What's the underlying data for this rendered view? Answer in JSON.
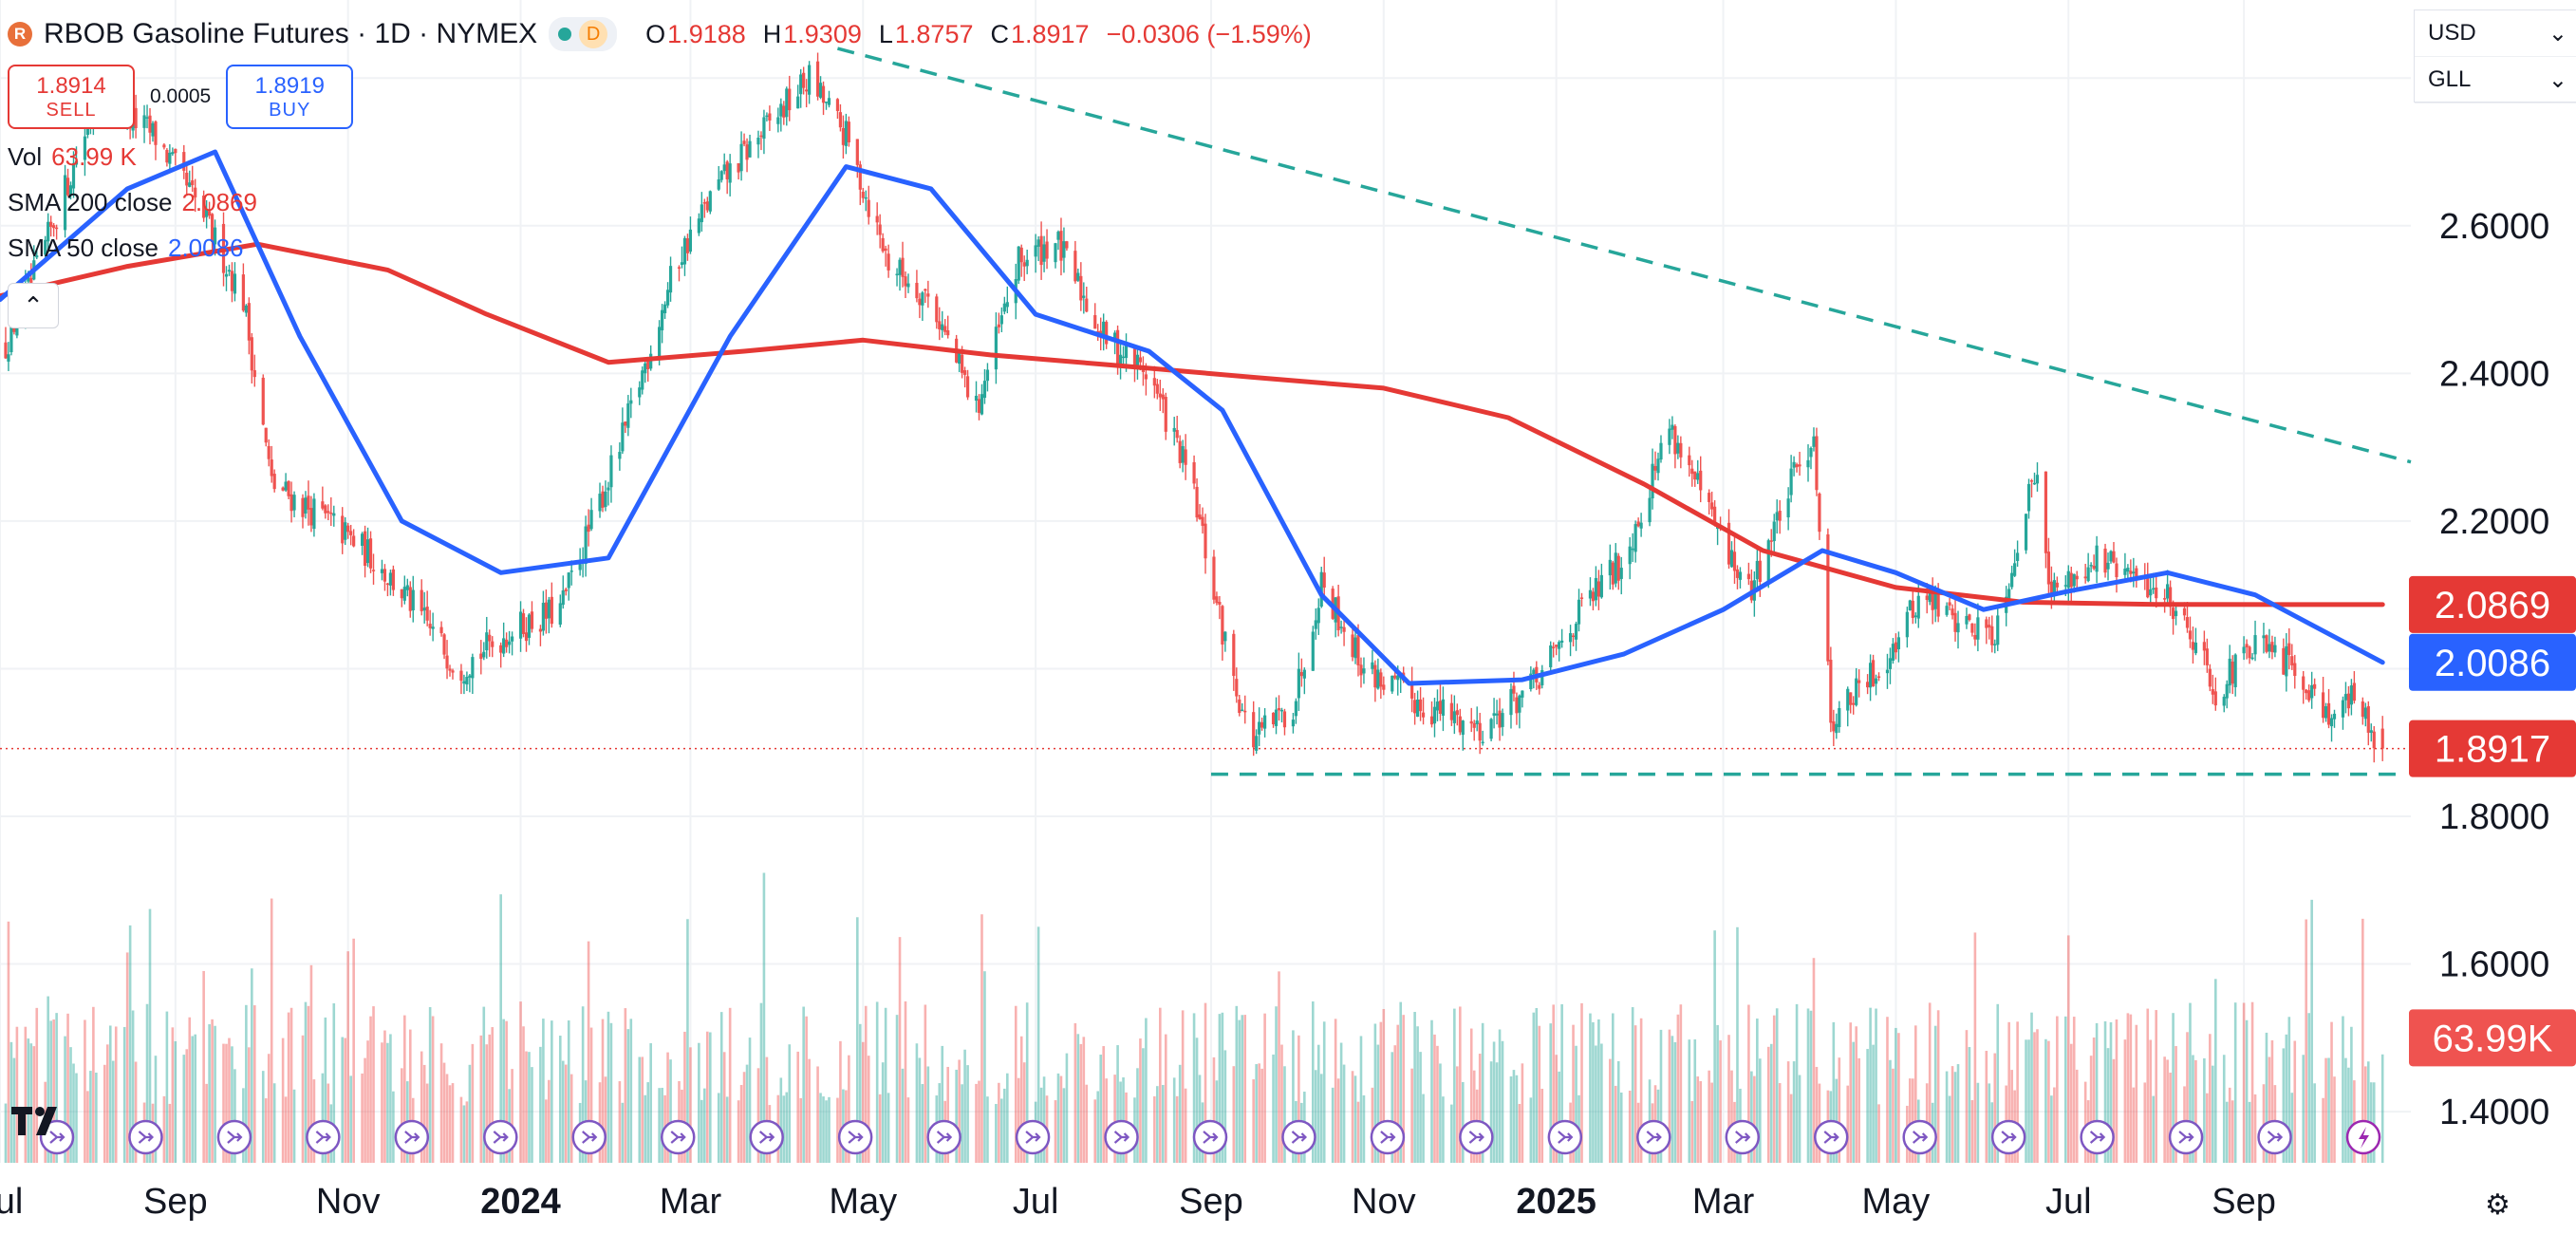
{
  "header": {
    "logo_letter": "R",
    "title": "RBOB Gasoline Futures · 1D · NYMEX",
    "mode_badge": "D",
    "ohlc": [
      {
        "k": "O",
        "v": "1.9188"
      },
      {
        "k": "H",
        "v": "1.9309"
      },
      {
        "k": "L",
        "v": "1.8757"
      },
      {
        "k": "C",
        "v": "1.8917"
      }
    ],
    "change": "−0.0306 (−1.59%)"
  },
  "trade": {
    "sell_price": "1.8914",
    "sell_label": "SELL",
    "spread": "0.0005",
    "buy_price": "1.8919",
    "buy_label": "BUY"
  },
  "indicators": [
    {
      "name": "Vol",
      "value": "63.99 K",
      "color": "#e53935"
    },
    {
      "name": "SMA 200 close",
      "value": "2.0869",
      "color": "#e53935"
    },
    {
      "name": "SMA 50 close",
      "value": "2.0086",
      "color": "#2962ff"
    }
  ],
  "collapse_glyph": "⌃",
  "units": {
    "currency": "USD",
    "unit": "GLL",
    "chevron": "⌄"
  },
  "settings_glyph": "⚙",
  "chart_data": {
    "type": "candlestick",
    "symbol": "RBOB Gasoline Futures",
    "interval": "1D",
    "exchange": "NYMEX",
    "ylim": [
      1.35,
      2.88
    ],
    "y_ticks": [
      1.4,
      1.6,
      1.8,
      2.0,
      2.2,
      2.4,
      2.6,
      2.8
    ],
    "y_tick_labels": [
      "1.4000",
      "1.6000",
      "1.8000",
      "",
      "2.2000",
      "2.4000",
      "2.6000",
      "2.8000"
    ],
    "x_tick_labels": [
      "Jul",
      "Sep",
      "Nov",
      "2024",
      "Mar",
      "May",
      "Jul",
      "Sep",
      "Nov",
      "2025",
      "Mar",
      "May",
      "Jul",
      "Sep"
    ],
    "x_tick_dates": [
      "2023-07-01",
      "2023-09-01",
      "2023-11-01",
      "2024-01-01",
      "2024-03-01",
      "2024-05-01",
      "2024-07-01",
      "2024-09-01",
      "2024-11-01",
      "2025-01-01",
      "2025-03-01",
      "2025-05-01",
      "2025-07-01",
      "2025-09-01"
    ],
    "x_range": [
      "2023-07-01",
      "2025-10-30"
    ],
    "price_path": [
      [
        "2023-07-01",
        2.42
      ],
      [
        "2023-07-15",
        2.55
      ],
      [
        "2023-08-05",
        2.78
      ],
      [
        "2023-08-25",
        2.72
      ],
      [
        "2023-09-10",
        2.62
      ],
      [
        "2023-09-25",
        2.5
      ],
      [
        "2023-10-05",
        2.25
      ],
      [
        "2023-10-25",
        2.2
      ],
      [
        "2023-11-10",
        2.15
      ],
      [
        "2023-11-25",
        2.08
      ],
      [
        "2023-12-10",
        2.0
      ],
      [
        "2023-12-28",
        2.05
      ],
      [
        "2024-01-15",
        2.08
      ],
      [
        "2024-02-05",
        2.3
      ],
      [
        "2024-02-25",
        2.55
      ],
      [
        "2024-03-10",
        2.65
      ],
      [
        "2024-03-25",
        2.72
      ],
      [
        "2024-04-12",
        2.8
      ],
      [
        "2024-04-25",
        2.72
      ],
      [
        "2024-05-10",
        2.55
      ],
      [
        "2024-05-25",
        2.5
      ],
      [
        "2024-06-10",
        2.35
      ],
      [
        "2024-06-25",
        2.55
      ],
      [
        "2024-07-08",
        2.58
      ],
      [
        "2024-07-25",
        2.45
      ],
      [
        "2024-08-10",
        2.4
      ],
      [
        "2024-08-25",
        2.25
      ],
      [
        "2024-09-05",
        2.05
      ],
      [
        "2024-09-15",
        1.9
      ],
      [
        "2024-09-30",
        1.95
      ],
      [
        "2024-10-10",
        2.12
      ],
      [
        "2024-10-25",
        2.0
      ],
      [
        "2024-11-15",
        1.95
      ],
      [
        "2024-12-05",
        1.92
      ],
      [
        "2024-12-25",
        1.98
      ],
      [
        "2025-01-10",
        2.08
      ],
      [
        "2025-01-25",
        2.15
      ],
      [
        "2025-02-10",
        2.33
      ],
      [
        "2025-02-25",
        2.2
      ],
      [
        "2025-03-10",
        2.1
      ],
      [
        "2025-03-25",
        2.25
      ],
      [
        "2025-04-02",
        2.32
      ],
      [
        "2025-04-08",
        1.93
      ],
      [
        "2025-04-25",
        2.0
      ],
      [
        "2025-05-10",
        2.1
      ],
      [
        "2025-05-25",
        2.06
      ],
      [
        "2025-06-05",
        2.05
      ],
      [
        "2025-06-20",
        2.28
      ],
      [
        "2025-06-25",
        2.1
      ],
      [
        "2025-07-10",
        2.15
      ],
      [
        "2025-07-25",
        2.12
      ],
      [
        "2025-08-05",
        2.1
      ],
      [
        "2025-08-15",
        2.04
      ],
      [
        "2025-08-22",
        1.97
      ],
      [
        "2025-09-05",
        2.03
      ],
      [
        "2025-09-20",
        2.0
      ],
      [
        "2025-10-01",
        1.94
      ],
      [
        "2025-10-10",
        1.96
      ],
      [
        "2025-10-20",
        1.89
      ]
    ],
    "last_candle": {
      "open": 1.9188,
      "high": 1.9309,
      "low": 1.8757,
      "close": 1.8917
    },
    "series": [
      {
        "name": "SMA 200 close",
        "color": "#e53935",
        "points": [
          [
            "2023-07-01",
            2.505
          ],
          [
            "2023-08-15",
            2.545
          ],
          [
            "2023-09-30",
            2.575
          ],
          [
            "2023-11-15",
            2.54
          ],
          [
            "2023-12-20",
            2.48
          ],
          [
            "2024-02-01",
            2.415
          ],
          [
            "2024-03-20",
            2.43
          ],
          [
            "2024-05-01",
            2.445
          ],
          [
            "2024-06-15",
            2.425
          ],
          [
            "2024-08-01",
            2.41
          ],
          [
            "2024-09-15",
            2.395
          ],
          [
            "2024-11-01",
            2.38
          ],
          [
            "2024-12-15",
            2.34
          ],
          [
            "2025-02-01",
            2.25
          ],
          [
            "2025-03-15",
            2.16
          ],
          [
            "2025-05-01",
            2.11
          ],
          [
            "2025-06-15",
            2.09
          ],
          [
            "2025-08-01",
            2.087
          ],
          [
            "2025-10-20",
            2.0869
          ]
        ]
      },
      {
        "name": "SMA 50 close",
        "color": "#2962ff",
        "points": [
          [
            "2023-07-01",
            2.5
          ],
          [
            "2023-08-15",
            2.65
          ],
          [
            "2023-09-15",
            2.7
          ],
          [
            "2023-10-15",
            2.45
          ],
          [
            "2023-11-20",
            2.2
          ],
          [
            "2023-12-25",
            2.13
          ],
          [
            "2024-02-01",
            2.15
          ],
          [
            "2024-03-15",
            2.45
          ],
          [
            "2024-04-25",
            2.68
          ],
          [
            "2024-05-25",
            2.65
          ],
          [
            "2024-07-01",
            2.48
          ],
          [
            "2024-08-10",
            2.43
          ],
          [
            "2024-09-05",
            2.35
          ],
          [
            "2024-10-10",
            2.1
          ],
          [
            "2024-11-10",
            1.98
          ],
          [
            "2024-12-20",
            1.985
          ],
          [
            "2025-01-25",
            2.02
          ],
          [
            "2025-03-01",
            2.08
          ],
          [
            "2025-04-05",
            2.16
          ],
          [
            "2025-05-01",
            2.13
          ],
          [
            "2025-06-01",
            2.08
          ],
          [
            "2025-07-01",
            2.105
          ],
          [
            "2025-08-05",
            2.13
          ],
          [
            "2025-09-05",
            2.1
          ],
          [
            "2025-10-20",
            2.0086
          ]
        ]
      }
    ],
    "annotations": [
      {
        "type": "trendline",
        "style": "dashed",
        "color": "#26a69a",
        "from": [
          "2024-04-22",
          2.84
        ],
        "to": [
          "2025-10-30",
          2.28
        ]
      },
      {
        "type": "horizontal",
        "style": "dashed",
        "color": "#26a69a",
        "from": [
          "2024-09-01",
          1.857
        ],
        "to": [
          "2025-10-28",
          1.857
        ]
      },
      {
        "type": "price_line",
        "style": "dotted",
        "color": "#e53935",
        "y": 1.8917
      }
    ],
    "price_labels": [
      {
        "text": "2.0869",
        "y": 2.0869,
        "color": "#e53935"
      },
      {
        "text": "2.0086",
        "y": 2.0086,
        "color": "#2962ff"
      },
      {
        "text": "1.8917",
        "y": 1.8917,
        "color": "#e53935"
      },
      {
        "text": "63.99K",
        "y": 1.5,
        "color": "#ef5350"
      }
    ],
    "volume": {
      "current": "63.99K"
    },
    "event_markers_count": 27
  }
}
